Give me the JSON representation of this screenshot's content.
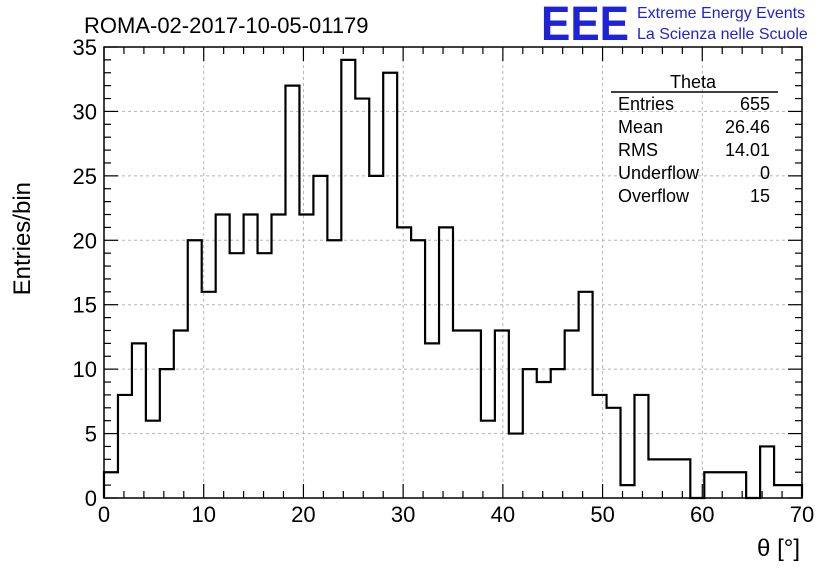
{
  "chart_data": {
    "type": "bar",
    "title": "ROMA-02-2017-10-05-01179",
    "xlabel": "θ [°]",
    "ylabel": "Entries/bin",
    "xlim": [
      0,
      70
    ],
    "ylim": [
      0,
      35
    ],
    "xticks": [
      0,
      10,
      20,
      30,
      40,
      50,
      60,
      70
    ],
    "yticks": [
      0,
      5,
      10,
      15,
      20,
      25,
      30,
      35
    ],
    "grid": true,
    "bin_width": 1.4,
    "values": [
      2,
      8,
      12,
      6,
      10,
      13,
      20,
      16,
      22,
      19,
      22,
      19,
      22,
      32,
      22,
      25,
      20,
      34,
      31,
      25,
      33,
      21,
      20,
      12,
      21,
      13,
      13,
      6,
      13,
      5,
      10,
      9,
      10,
      13,
      16,
      8,
      7,
      1,
      8,
      3,
      3,
      3,
      0,
      2,
      2,
      2,
      0,
      4,
      1,
      1
    ],
    "stats_box": {
      "name": "Theta",
      "rows": [
        {
          "label": "Entries",
          "value": "655"
        },
        {
          "label": "Mean",
          "value": "26.46"
        },
        {
          "label": "RMS",
          "value": "14.01"
        },
        {
          "label": "Underflow",
          "value": "0"
        },
        {
          "label": "Overflow",
          "value": "15"
        }
      ]
    }
  },
  "logo": {
    "letters": "EEE",
    "line1": "Extreme Energy Events",
    "line2": "La Scienza nelle Scuole"
  },
  "colors": {
    "logo": "#1f23d6",
    "histogram": "#000000",
    "grid": "#b5b5b5"
  }
}
